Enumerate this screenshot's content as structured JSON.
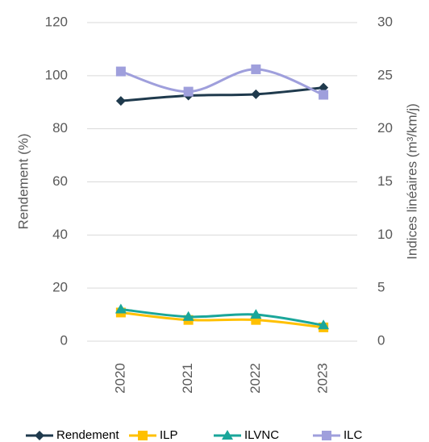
{
  "chart_data": {
    "type": "line",
    "y_label": "Rendement (%)",
    "y2_label": "Indices linéaires (m³/km/j)",
    "categories": [
      "2020",
      "2021",
      "2022",
      "2023"
    ],
    "ylim": [
      0,
      120
    ],
    "yticks": [
      0,
      20,
      40,
      60,
      80,
      100,
      120
    ],
    "y2lim": [
      0,
      30
    ],
    "y2ticks": [
      0,
      5,
      10,
      15,
      20,
      25,
      30
    ],
    "grid": true,
    "legend": "bottom",
    "series": [
      {
        "name": "Rendement",
        "color": "#1f3a4d",
        "marker": "diamond",
        "values": [
          90.5,
          92.5,
          93,
          95.5
        ]
      },
      {
        "name": "ILP",
        "color": "#ffc000",
        "marker": "square",
        "axis": "y2",
        "values": [
          2.7,
          2.0,
          2.0,
          1.3
        ]
      },
      {
        "name": "ILVNC",
        "color": "#1aa69a",
        "marker": "triangle",
        "axis": "y2",
        "values": [
          3.0,
          2.3,
          2.5,
          1.5
        ]
      },
      {
        "name": "ILC",
        "color": "#9f9fdc",
        "marker": "square",
        "axis": "y2",
        "values": [
          25.4,
          23.5,
          25.6,
          23.2
        ]
      }
    ]
  }
}
